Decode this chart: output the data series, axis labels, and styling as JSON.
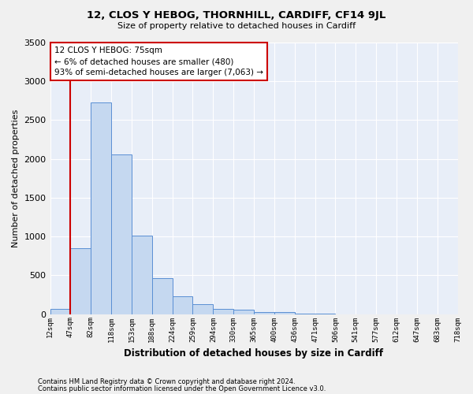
{
  "title": "12, CLOS Y HEBOG, THORNHILL, CARDIFF, CF14 9JL",
  "subtitle": "Size of property relative to detached houses in Cardiff",
  "xlabel": "Distribution of detached houses by size in Cardiff",
  "ylabel": "Number of detached properties",
  "bar_values": [
    65,
    850,
    2730,
    2060,
    1010,
    460,
    225,
    130,
    65,
    55,
    30,
    25,
    5,
    5,
    0,
    0,
    0,
    0,
    0,
    0
  ],
  "bin_labels": [
    "12sqm",
    "47sqm",
    "82sqm",
    "118sqm",
    "153sqm",
    "188sqm",
    "224sqm",
    "259sqm",
    "294sqm",
    "330sqm",
    "365sqm",
    "400sqm",
    "436sqm",
    "471sqm",
    "506sqm",
    "541sqm",
    "577sqm",
    "612sqm",
    "647sqm",
    "683sqm",
    "718sqm"
  ],
  "bar_color": "#c5d8f0",
  "bar_edge_color": "#5a8fd4",
  "background_color": "#e8eef8",
  "grid_color": "#ffffff",
  "vline_color": "#cc0000",
  "annotation_text": "12 CLOS Y HEBOG: 75sqm\n← 6% of detached houses are smaller (480)\n93% of semi-detached houses are larger (7,063) →",
  "annotation_box_color": "#cc0000",
  "ylim": [
    0,
    3500
  ],
  "footnote1": "Contains HM Land Registry data © Crown copyright and database right 2024.",
  "footnote2": "Contains public sector information licensed under the Open Government Licence v3.0."
}
